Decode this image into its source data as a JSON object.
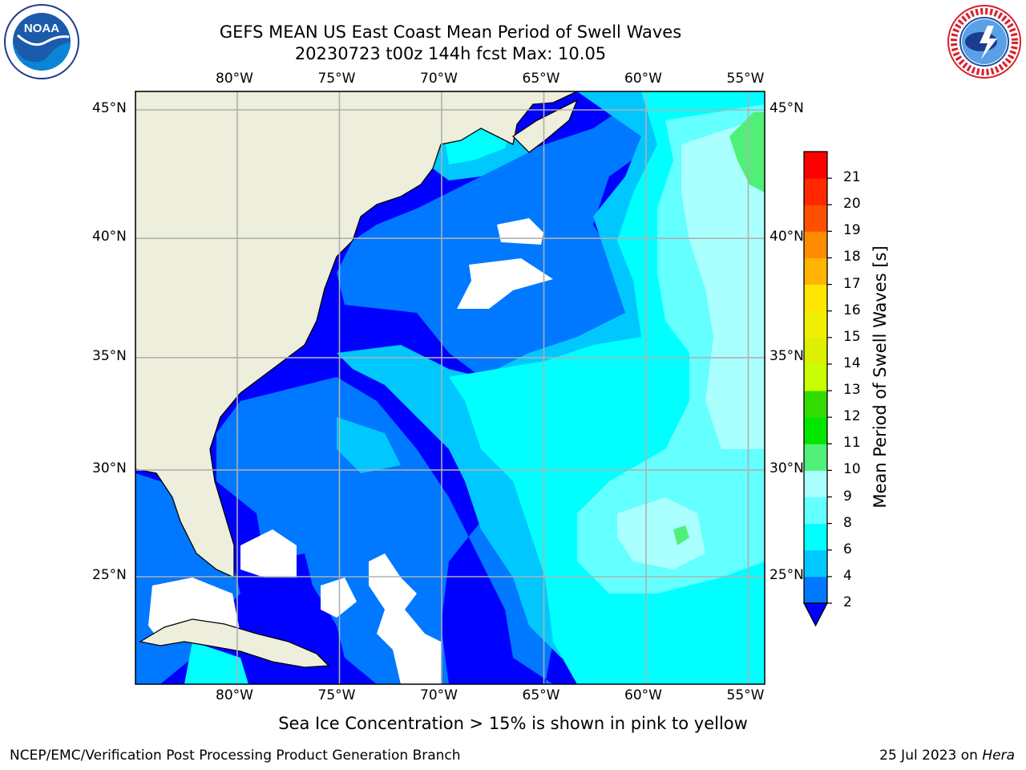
{
  "title": {
    "line1": "GEFS MEAN US East Coast Mean Period of Swell Waves",
    "line2": "20230723 t00z 144h fcst   Max: 10.05"
  },
  "map": {
    "lon_ticks": [
      "80°W",
      "75°W",
      "70°W",
      "65°W",
      "60°W",
      "55°W"
    ],
    "lat_ticks": [
      "45°N",
      "40°N",
      "35°N",
      "30°N",
      "25°N"
    ],
    "lon_range": [
      -85,
      -54.2
    ],
    "lat_range": [
      20.2,
      46
    ],
    "grid": true,
    "colors": {
      "land": "#eeeedc",
      "no_data": "#ffffff",
      "grid": "#b0b0b0"
    }
  },
  "colorbar": {
    "label": "Mean Period of Swell Waves [s]",
    "ticks": [
      "2",
      "4",
      "6",
      "8",
      "9",
      "10",
      "11",
      "12",
      "13",
      "14",
      "15",
      "16",
      "17",
      "18",
      "19",
      "20",
      "21"
    ],
    "bins": [
      {
        "from": 2,
        "to": 4,
        "color": "#0078ff"
      },
      {
        "from": 4,
        "to": 6,
        "color": "#00c8ff"
      },
      {
        "from": 6,
        "to": 8,
        "color": "#00ffff"
      },
      {
        "from": 8,
        "to": 9,
        "color": "#64ffff"
      },
      {
        "from": 9,
        "to": 10,
        "color": "#aaffff"
      },
      {
        "from": 10,
        "to": 11,
        "color": "#50f078"
      },
      {
        "from": 11,
        "to": 12,
        "color": "#00e600"
      },
      {
        "from": 12,
        "to": 13,
        "color": "#32dc00"
      },
      {
        "from": 13,
        "to": 14,
        "color": "#c8ff00"
      },
      {
        "from": 14,
        "to": 15,
        "color": "#dcf000"
      },
      {
        "from": 15,
        "to": 16,
        "color": "#f0f000"
      },
      {
        "from": 16,
        "to": 17,
        "color": "#ffe600"
      },
      {
        "from": 17,
        "to": 18,
        "color": "#ffb400"
      },
      {
        "from": 18,
        "to": 19,
        "color": "#ff8c00"
      },
      {
        "from": 19,
        "to": 20,
        "color": "#ff5000"
      },
      {
        "from": 20,
        "to": 21,
        "color": "#ff2800"
      },
      {
        "from": 21,
        "to": 22,
        "color": "#ff0000"
      }
    ],
    "under_color": "#0000ff"
  },
  "ice_note": "Sea Ice Concentration > 15% is shown in pink to yellow",
  "footer": {
    "left": "NCEP/EMC/Verification Post Processing Product Generation Branch",
    "right_date": "25 Jul 2023 on",
    "right_machine": "Hera"
  },
  "logos": {
    "noaa": "NOAA",
    "nws": "NATIONAL WEATHER SERVICE"
  }
}
